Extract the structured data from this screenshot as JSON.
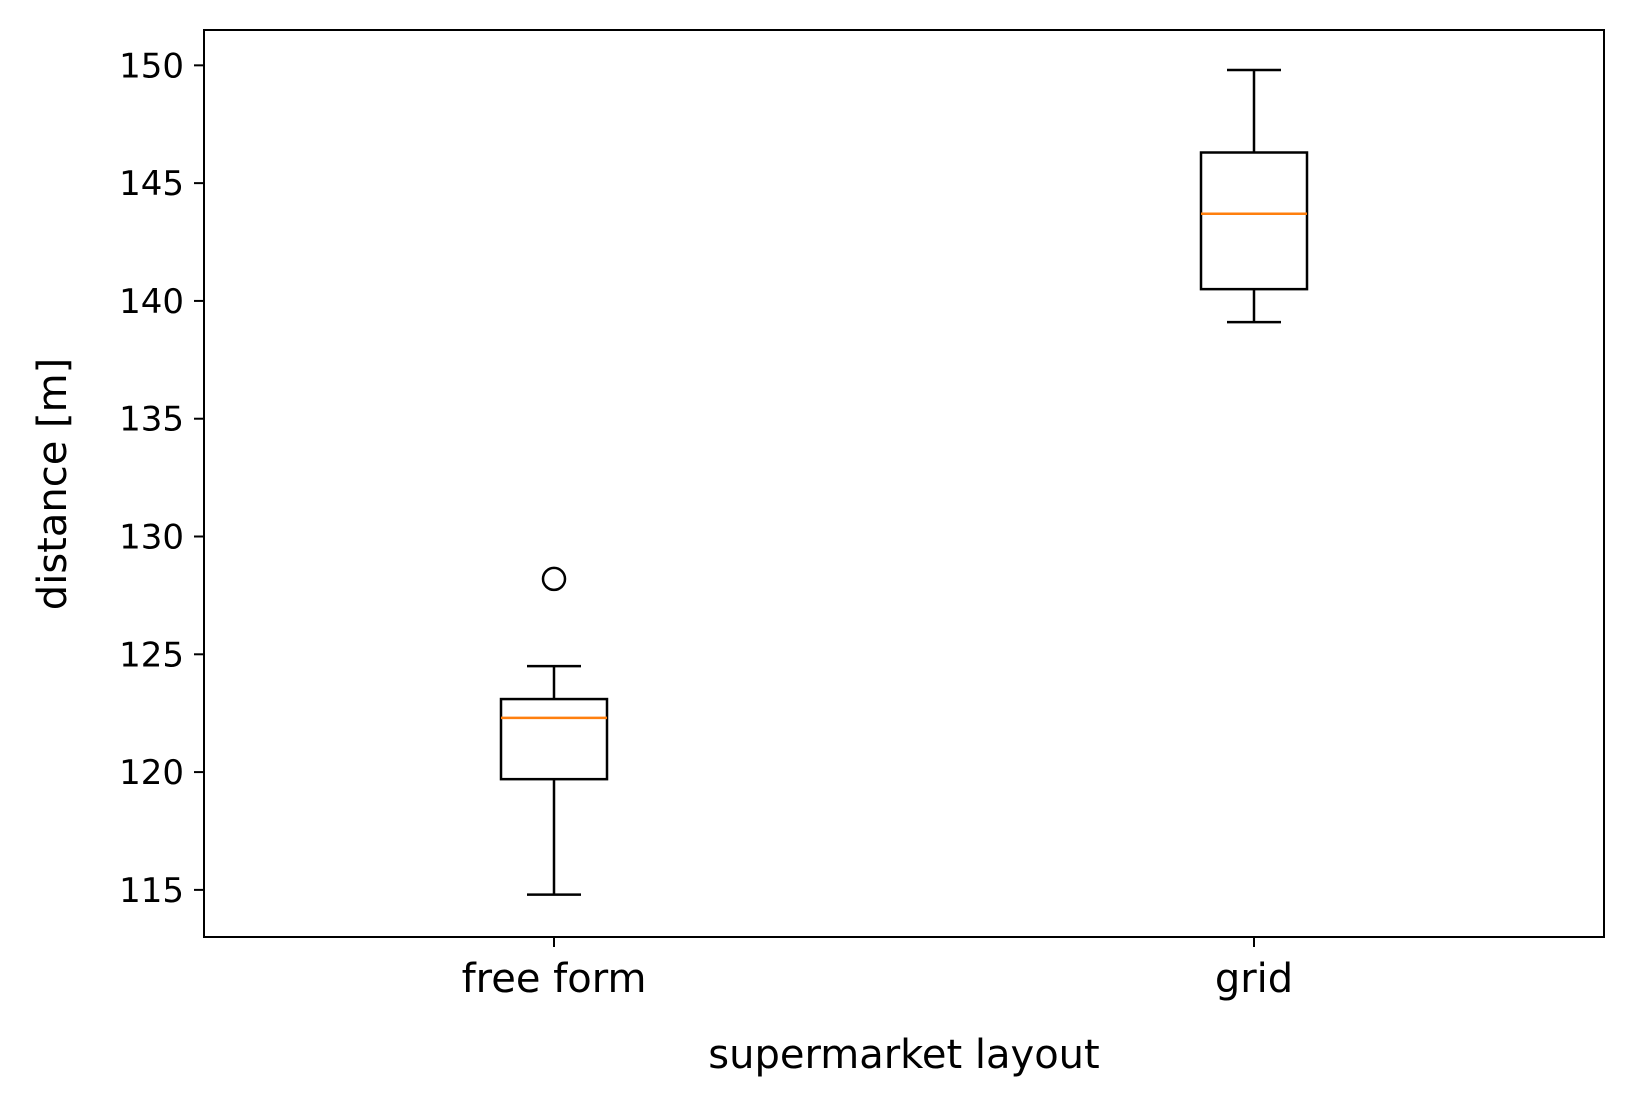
{
  "chart_data": {
    "type": "box",
    "xlabel": "supermarket layout",
    "ylabel": "distance [m]",
    "ylim": [
      113.0,
      151.5
    ],
    "yticks": [
      115,
      120,
      125,
      130,
      135,
      140,
      145,
      150
    ],
    "grid": false,
    "categories": [
      "free form",
      "grid"
    ],
    "boxes": [
      {
        "category": "free form",
        "whisker_low": 114.8,
        "q1": 119.7,
        "median": 122.3,
        "q3": 123.1,
        "whisker_high": 124.5,
        "outliers": [
          128.2
        ]
      },
      {
        "category": "grid",
        "whisker_low": 139.1,
        "q1": 140.5,
        "median": 143.7,
        "q3": 146.3,
        "whisker_high": 149.8,
        "outliers": []
      }
    ],
    "colors": {
      "box": "#000000",
      "median": "#ff7f0e",
      "axis": "#000000"
    }
  }
}
